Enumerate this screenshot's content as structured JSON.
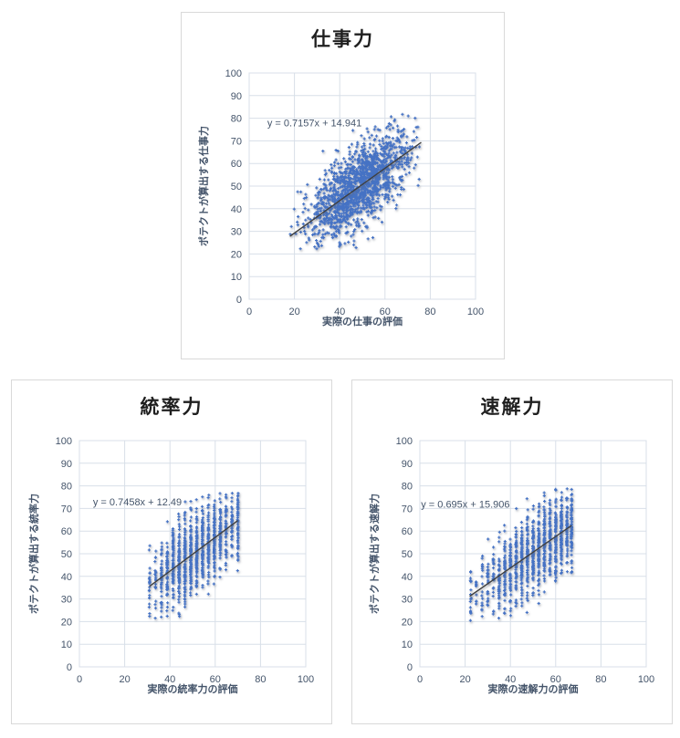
{
  "colors": {
    "marker": "#4472C4",
    "trendline": "#3f3f3f",
    "grid": "#d8dfe8",
    "axis_text": "#44546A",
    "equation_text": "#44546A",
    "title_text": "#1f1f1f",
    "card_border": "#d9d9d9",
    "background": "#ffffff"
  },
  "chart_data": [
    {
      "type": "scatter",
      "title": "仕事力",
      "xlabel": "実際の仕事の評価",
      "ylabel": "ポテクトが算出する仕事力",
      "xlim": [
        0,
        100
      ],
      "ylim": [
        0,
        100
      ],
      "x_ticks": [
        0,
        20,
        40,
        60,
        80,
        100
      ],
      "y_ticks": [
        0,
        10,
        20,
        30,
        40,
        50,
        60,
        70,
        80,
        90,
        100
      ],
      "grid": true,
      "legend": "none",
      "trendline": {
        "label": "y = 0.7157x + 14.941",
        "slope": 0.7157,
        "intercept": 14.941,
        "x_start": 18,
        "x_end": 76,
        "label_x": 8,
        "label_y": 78
      },
      "scatter": {
        "model": "linear-gaussian",
        "seed": 42,
        "count": 1500,
        "x_mean": 49,
        "x_sd": 11,
        "x_clip": [
          18,
          76
        ],
        "noise_sd": 8.2,
        "y_clip": [
          22,
          82
        ]
      }
    },
    {
      "type": "scatter",
      "title": "統率力",
      "xlabel": "実際の統率力の評価",
      "ylabel": "ポテクトが算出する統率力",
      "xlim": [
        0,
        100
      ],
      "ylim": [
        0,
        100
      ],
      "x_ticks": [
        0,
        20,
        40,
        60,
        80,
        100
      ],
      "y_ticks": [
        0,
        10,
        20,
        30,
        40,
        50,
        60,
        70,
        80,
        90,
        100
      ],
      "grid": true,
      "legend": "none",
      "trendline": {
        "label": "y = 0.7458x + 12.49",
        "slope": 0.7458,
        "intercept": 12.49,
        "x_start": 31,
        "x_end": 70,
        "label_x": 6,
        "label_y": 73
      },
      "scatter": {
        "model": "columns",
        "seed": 7,
        "count": 1100,
        "columns": [
          31,
          33.6,
          36.2,
          38.8,
          41.4,
          44,
          46.6,
          49.2,
          51.8,
          54.4,
          57,
          59.6,
          62.2,
          64.8,
          67.4,
          70
        ],
        "weights": [
          2,
          2,
          4,
          6,
          7,
          9,
          10,
          10,
          10,
          9,
          8,
          8,
          7,
          5,
          4,
          6
        ],
        "x_jitter": 0.2,
        "noise_sd": 8.5,
        "y_clip": [
          21,
          77
        ]
      }
    },
    {
      "type": "scatter",
      "title": "速解力",
      "xlabel": "実際の速解力の評価",
      "ylabel": "ポテクトが算出する速解力",
      "xlim": [
        0,
        100
      ],
      "ylim": [
        0,
        100
      ],
      "x_ticks": [
        0,
        20,
        40,
        60,
        80,
        100
      ],
      "y_ticks": [
        0,
        10,
        20,
        30,
        40,
        50,
        60,
        70,
        80,
        90,
        100
      ],
      "grid": true,
      "legend": "none",
      "trendline": {
        "label": "y = 0.695x + 15.906",
        "slope": 0.695,
        "intercept": 15.906,
        "x_start": 22,
        "x_end": 67,
        "label_x": 0.5,
        "label_y": 72
      },
      "scatter": {
        "model": "columns",
        "seed": 13,
        "count": 1200,
        "columns": [
          22.5,
          25,
          27.5,
          30,
          32.5,
          35,
          37.5,
          40,
          42.5,
          45,
          47.5,
          50,
          52.5,
          55,
          57.5,
          60,
          62.5,
          65,
          67
        ],
        "weights": [
          2,
          1,
          2,
          3,
          3,
          5,
          6,
          7,
          8,
          9,
          10,
          10,
          10,
          10,
          9,
          10,
          11,
          7,
          9
        ],
        "x_jitter": 0.2,
        "noise_sd": 8.5,
        "y_clip": [
          20,
          80
        ]
      }
    }
  ]
}
